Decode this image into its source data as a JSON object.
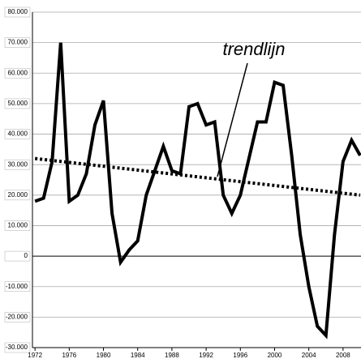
{
  "chart_data": {
    "type": "line",
    "annotation": "trendlijn",
    "x": [
      1972,
      1973,
      1974,
      1975,
      1976,
      1977,
      1978,
      1979,
      1980,
      1981,
      1982,
      1983,
      1984,
      1985,
      1986,
      1987,
      1988,
      1989,
      1990,
      1991,
      1992,
      1993,
      1994,
      1995,
      1996,
      1997,
      1998,
      1999,
      2000,
      2001,
      2002,
      2003,
      2004,
      2005,
      2006,
      2007,
      2008,
      2009,
      2010
    ],
    "values": [
      18000,
      19000,
      31000,
      70000,
      18000,
      20000,
      27000,
      43000,
      51000,
      14000,
      -2000,
      2000,
      5000,
      20000,
      28000,
      36000,
      28000,
      27000,
      49000,
      50000,
      43000,
      44000,
      20000,
      14000,
      20000,
      32000,
      44000,
      44000,
      57000,
      56000,
      33000,
      7000,
      -10000,
      -23000,
      -26000,
      7000,
      31000,
      38000,
      33000
    ],
    "color": "#000000",
    "trend": {
      "x": [
        1972,
        2010
      ],
      "values": [
        32000,
        20000
      ]
    },
    "xlim": [
      1971.7,
      2010.1
    ],
    "xticks": [
      1972,
      1976,
      1980,
      1984,
      1988,
      1992,
      1996,
      2000,
      2004,
      2008
    ],
    "ylim": [
      -30000,
      80000
    ],
    "yticks": [
      {
        "value": 80000,
        "label": "80.000"
      },
      {
        "value": 70000,
        "label": "70.000"
      },
      {
        "value": 60000,
        "label": "60.000"
      },
      {
        "value": 50000,
        "label": "50.000"
      },
      {
        "value": 40000,
        "label": "40.000"
      },
      {
        "value": 30000,
        "label": "30.000"
      },
      {
        "value": 20000,
        "label": "20.000"
      },
      {
        "value": 10000,
        "label": "10.000"
      },
      0,
      {
        "value": -10000,
        "label": "-10.000"
      },
      {
        "value": -20000,
        "label": "-20.000"
      },
      {
        "value": -30000,
        "label": "-30.000"
      }
    ],
    "grid": true
  }
}
